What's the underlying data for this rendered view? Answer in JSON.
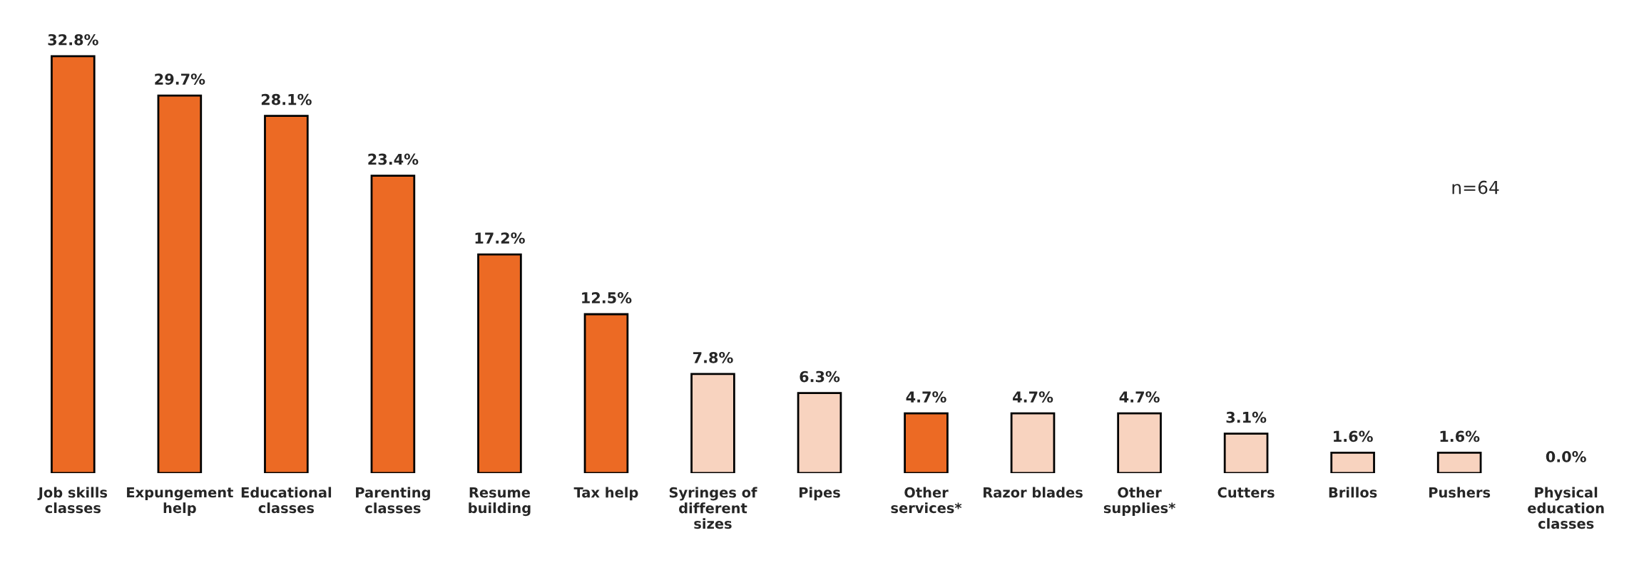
{
  "chart_data": {
    "type": "bar",
    "categories": [
      "Job skills\nclasses",
      "Expungement\nhelp",
      "Educational\nclasses",
      "Parenting\nclasses",
      "Resume\nbuilding",
      "Tax help",
      "Syringes of\ndifferent\nsizes",
      "Pipes",
      "Other\nservices*",
      "Razor blades",
      "Other\nsupplies*",
      "Cutters",
      "Brillos",
      "Pushers",
      "Physical\neducation\nclasses"
    ],
    "values": [
      32.8,
      29.7,
      28.1,
      23.4,
      17.2,
      12.5,
      7.8,
      6.3,
      4.7,
      4.7,
      4.7,
      3.1,
      1.6,
      1.6,
      0.0
    ],
    "colors": [
      "#ec6a24",
      "#ec6a24",
      "#ec6a24",
      "#ec6a24",
      "#ec6a24",
      "#ec6a24",
      "#f8d3bf",
      "#f8d3bf",
      "#ec6a24",
      "#f8d3bf",
      "#f8d3bf",
      "#f8d3bf",
      "#f8d3bf",
      "#f8d3bf",
      "#f8d3bf"
    ],
    "value_labels": [
      "32.8%",
      "29.7%",
      "28.1%",
      "23.4%",
      "17.2%",
      "12.5%",
      "7.8%",
      "6.3%",
      "4.7%",
      "4.7%",
      "4.7%",
      "3.1%",
      "1.6%",
      "1.6%",
      "0.0%"
    ],
    "annotations": [
      "n=64"
    ],
    "grid": false
  }
}
